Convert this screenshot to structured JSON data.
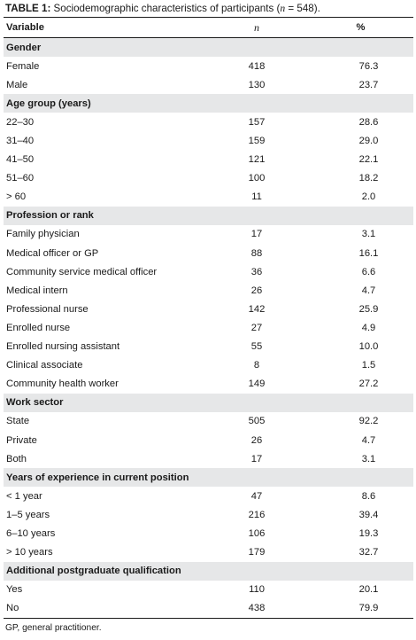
{
  "caption": {
    "label": "TABLE 1:",
    "text_before": " Sociodemographic characteristics of participants (",
    "n_symbol": "n",
    "text_after": " = 548)."
  },
  "header": {
    "variable": "Variable",
    "n": "n",
    "percent": "%"
  },
  "groups": [
    {
      "title": "Gender",
      "rows": [
        {
          "label": "Female",
          "n": "418",
          "pct": "76.3"
        },
        {
          "label": "Male",
          "n": "130",
          "pct": "23.7"
        }
      ]
    },
    {
      "title": "Age group (years)",
      "rows": [
        {
          "label": "22–30",
          "n": "157",
          "pct": "28.6"
        },
        {
          "label": "31–40",
          "n": "159",
          "pct": "29.0"
        },
        {
          "label": "41–50",
          "n": "121",
          "pct": "22.1"
        },
        {
          "label": "51–60",
          "n": "100",
          "pct": "18.2"
        },
        {
          "label": "> 60",
          "n": "11",
          "pct": "2.0"
        }
      ]
    },
    {
      "title": "Profession or rank",
      "rows": [
        {
          "label": "Family physician",
          "n": "17",
          "pct": "3.1"
        },
        {
          "label": "Medical officer or GP",
          "n": "88",
          "pct": "16.1"
        },
        {
          "label": "Community service medical officer",
          "n": "36",
          "pct": "6.6"
        },
        {
          "label": "Medical intern",
          "n": "26",
          "pct": "4.7"
        },
        {
          "label": "Professional nurse",
          "n": "142",
          "pct": "25.9"
        },
        {
          "label": "Enrolled nurse",
          "n": "27",
          "pct": "4.9"
        },
        {
          "label": "Enrolled nursing assistant",
          "n": "55",
          "pct": "10.0"
        },
        {
          "label": "Clinical associate",
          "n": "8",
          "pct": "1.5"
        },
        {
          "label": "Community health worker",
          "n": "149",
          "pct": "27.2"
        }
      ]
    },
    {
      "title": "Work sector",
      "rows": [
        {
          "label": "State",
          "n": "505",
          "pct": "92.2"
        },
        {
          "label": "Private",
          "n": "26",
          "pct": "4.7"
        },
        {
          "label": "Both",
          "n": "17",
          "pct": "3.1"
        }
      ]
    },
    {
      "title": "Years of experience in current position",
      "rows": [
        {
          "label": "< 1 year",
          "n": "47",
          "pct": "8.6"
        },
        {
          "label": "1–5 years",
          "n": "216",
          "pct": "39.4"
        },
        {
          "label": "6–10 years",
          "n": "106",
          "pct": "19.3"
        },
        {
          "label": "> 10 years",
          "n": "179",
          "pct": "32.7"
        }
      ]
    },
    {
      "title": "Additional postgraduate qualification",
      "rows": [
        {
          "label": "Yes",
          "n": "110",
          "pct": "20.1"
        },
        {
          "label": "No",
          "n": "438",
          "pct": "79.9"
        }
      ]
    }
  ],
  "footnote": "GP, general practitioner."
}
